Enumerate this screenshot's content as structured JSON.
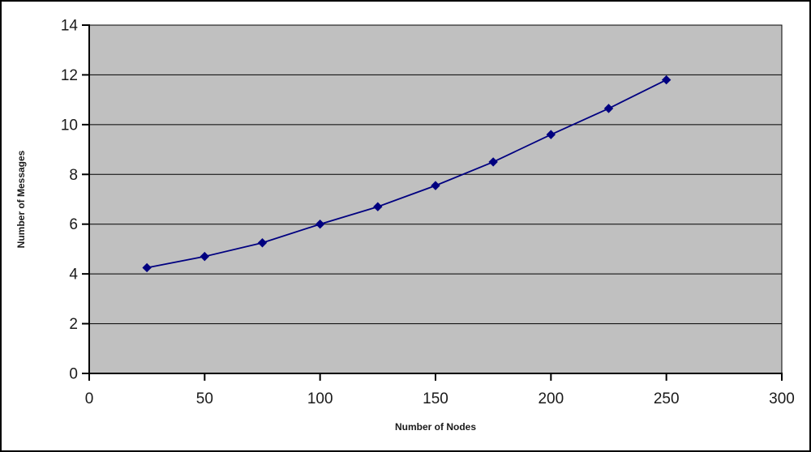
{
  "chart": {
    "y_axis_title": "Number of Messages",
    "x_axis_title": "Number of Nodes"
  },
  "chart_data": {
    "type": "line",
    "title": "",
    "xlabel": "Number of Nodes",
    "ylabel": "Number of Messages",
    "x": [
      25,
      50,
      75,
      100,
      125,
      150,
      175,
      200,
      225,
      250
    ],
    "y": [
      4.25,
      4.7,
      5.25,
      6.0,
      6.7,
      7.55,
      8.5,
      9.6,
      10.65,
      11.8
    ],
    "xlim": [
      0,
      300
    ],
    "ylim": [
      0,
      14
    ],
    "xticks": [
      0,
      50,
      100,
      150,
      200,
      250,
      300
    ],
    "yticks": [
      0,
      2,
      4,
      6,
      8,
      10,
      12,
      14
    ],
    "grid": "horizontal",
    "legend_position": "none",
    "marker": "diamond",
    "colors": {
      "series": "#000080",
      "plot_background": "#c0c0c0",
      "gridline": "#000000",
      "axis": "#000000",
      "tick_label": "#1a1a1a",
      "page_background": "#ffffff",
      "outer_border": "#000000"
    }
  }
}
